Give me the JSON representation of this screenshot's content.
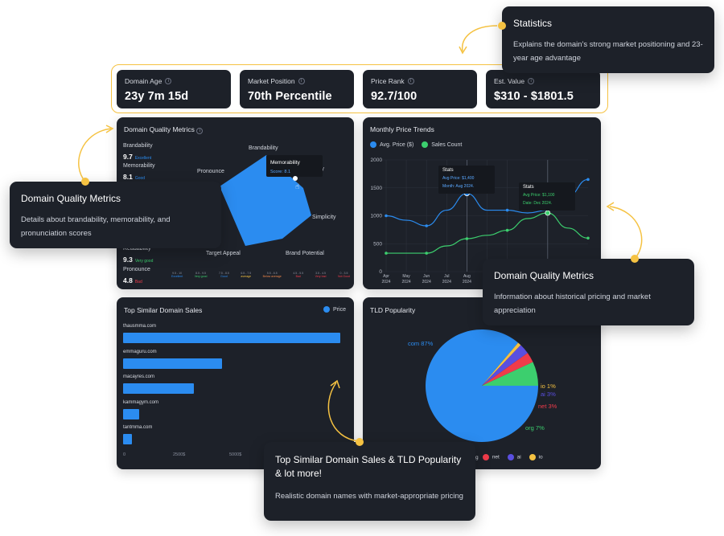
{
  "stats": [
    {
      "label": "Domain Age",
      "value": "23y 7m 15d"
    },
    {
      "label": "Market Position",
      "value": "70th Percentile"
    },
    {
      "label": "Price Rank",
      "value": "92.7/100"
    },
    {
      "label": "Est. Value",
      "value": "$310 - $1801.5"
    }
  ],
  "callouts": {
    "statistics": {
      "title": "Statistics",
      "body": "Explains the domain's strong market positioning and 23-year age advantage"
    },
    "quality": {
      "title": "Domain Quality Metrics",
      "body": "Details about brandability, memorability, and pronunciation scores"
    },
    "pricing": {
      "title": "Domain Quality Metrics",
      "body": "Information about historical pricing and market appreciation"
    },
    "sales": {
      "title": "Top Similar Domain Sales & TLD Popularity & lot more!",
      "body": "Realistic domain names with market-appropriate pricing"
    }
  },
  "quality_panel": {
    "title": "Domain Quality Metrics",
    "metrics": [
      {
        "label": "Brandability",
        "value": "9.7",
        "tag": "Excellent",
        "tag_color": "#2b8cf0"
      },
      {
        "label": "Memorability",
        "value": "8.1",
        "tag": "Good",
        "tag_color": "#2b8cf0"
      },
      {
        "label": "Readability",
        "value": "9.3",
        "tag": "Very good",
        "tag_color": "#3ccf6e"
      },
      {
        "label": "Pronounce",
        "value": "4.8",
        "tag": "Bad",
        "tag_color": "#ef3b4a"
      }
    ],
    "radar_axes": [
      "Brandability",
      "Memorability",
      "Simplicity",
      "Brand Potential",
      "Target Appeal",
      "Pronounce"
    ],
    "radar_tooltip": {
      "title": "Memorability",
      "score": "Score: 8.1"
    },
    "scale": [
      {
        "range": "9.5 - 10",
        "word": "Excellent",
        "color": "#2b8cf0"
      },
      {
        "range": "8.5 - 9.5",
        "word": "Very good",
        "color": "#3ccf6e"
      },
      {
        "range": "7.5 - 8.5",
        "word": "Good",
        "color": "#2b8cf0"
      },
      {
        "range": "6.5 - 7.5",
        "word": "average",
        "color": "#f5c242"
      },
      {
        "range": "5.5 - 6.5",
        "word": "Below average",
        "color": "#f0874a"
      },
      {
        "range": "4.5 - 5.5",
        "word": "Bad",
        "color": "#ef3b4a"
      },
      {
        "range": "3.5 - 4.5",
        "word": "Very bad",
        "color": "#ef3b4a"
      },
      {
        "range": "0 - 3.5",
        "word": "Not Good",
        "color": "#ef3b4a"
      }
    ]
  },
  "price_panel": {
    "title": "Monthly Price Trends",
    "legend": [
      "Avg. Price ($)",
      "Sales Count"
    ],
    "tooltip1": {
      "title": "Stats",
      "line1": "Avg Price: $1,400",
      "line2": "Month: Aug 2024."
    },
    "tooltip2": {
      "title": "Stats",
      "line1": "Avg Price: $1,100",
      "line2": "Date: Dec 2024."
    }
  },
  "sales_panel": {
    "title": "Top Similar Domain Sales",
    "legend": "Price",
    "axis": [
      "0",
      "2500$",
      "5000$"
    ]
  },
  "tld_panel": {
    "title": "TLD Popularity",
    "legend": [
      "com",
      "org",
      "net",
      "ai",
      "io"
    ]
  },
  "chart_data": [
    {
      "type": "line",
      "title": "Monthly Price Trends",
      "categories": [
        "Apr 2024",
        "May 2024",
        "Jun 2024",
        "Jul 2024",
        "Aug 2024",
        "Sep 2024",
        "Oct 2024",
        "Nov 2024",
        "Dec 2024",
        "Jan 2025",
        "Feb 2025"
      ],
      "ylim": [
        0,
        2000
      ],
      "yticks": [
        0,
        500,
        1000,
        1500,
        2000
      ],
      "series": [
        {
          "name": "Avg. Price ($)",
          "color": "#2b8cf0",
          "values": [
            1000,
            920,
            820,
            1100,
            1400,
            1100,
            1100,
            1050,
            1100,
            1350,
            1650
          ]
        },
        {
          "name": "Sales Count",
          "color": "#3ccf6e",
          "values": [
            330,
            330,
            330,
            460,
            590,
            650,
            740,
            950,
            1050,
            780,
            600
          ]
        }
      ]
    },
    {
      "type": "bar",
      "title": "Top Similar Domain Sales",
      "categories": [
        "thausmma.com",
        "emmaguru.com",
        "macayres.com",
        "kammagym.com",
        "tantmma.com"
      ],
      "values": [
        8300,
        3800,
        2700,
        620,
        350
      ],
      "xticks": [
        "0",
        "2500$",
        "5000$"
      ],
      "xlim": [
        0,
        8500
      ]
    },
    {
      "type": "pie",
      "title": "TLD Popularity",
      "labels": [
        "com",
        "org",
        "net",
        "ai",
        "io"
      ],
      "values": [
        87,
        7,
        3,
        3,
        1
      ],
      "display": [
        "com 87%",
        "org 7%",
        "net 3%",
        "ai 3%",
        "io 1%"
      ],
      "colors": [
        "#2b8cf0",
        "#3ccf6e",
        "#ef3b4a",
        "#5a4fe0",
        "#f5c242"
      ]
    }
  ]
}
